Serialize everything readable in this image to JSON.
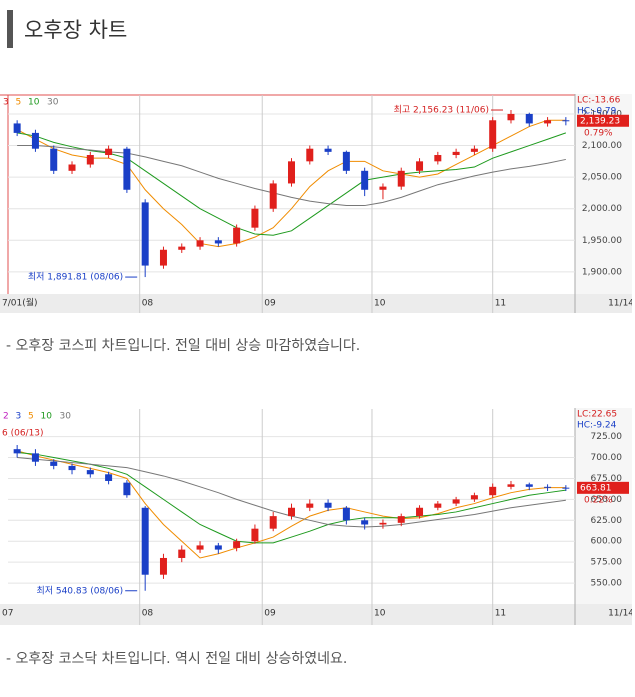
{
  "page": {
    "title": "오후장 차트",
    "captions": [
      "- 오후장 코스피 차트입니다. 전일 대비 상승 마감하였습니다.",
      "- 오후장 코스닥 차트입니다. 역시 전일 대비 상승하였네요."
    ]
  },
  "chart_data": [
    {
      "type": "candlestick",
      "legend_extra": [
        {
          "name": "3",
          "color": "#d42020"
        }
      ],
      "series": [
        {
          "name": "5",
          "color": "#f08c00",
          "values": [
            2125,
            2110,
            2095,
            2085,
            2080,
            2080,
            2070,
            2030,
            2000,
            1975,
            1945,
            1940,
            1945,
            1955,
            1970,
            2000,
            2035,
            2060,
            2075,
            2075,
            2060,
            2055,
            2050,
            2055,
            2070,
            2085,
            2100,
            2115,
            2130,
            2140,
            2140
          ]
        },
        {
          "name": "10",
          "color": "#1e9a1e",
          "values": [
            2120,
            2115,
            2105,
            2098,
            2092,
            2088,
            2080,
            2060,
            2040,
            2020,
            2000,
            1985,
            1970,
            1960,
            1958,
            1965,
            1985,
            2005,
            2025,
            2045,
            2050,
            2055,
            2058,
            2060,
            2062,
            2066,
            2080,
            2090,
            2100,
            2110,
            2120
          ]
        },
        {
          "name": "30",
          "color": "#777777",
          "values": [
            2100,
            2100,
            2098,
            2095,
            2093,
            2090,
            2088,
            2082,
            2075,
            2068,
            2058,
            2048,
            2040,
            2032,
            2025,
            2018,
            2012,
            2008,
            2005,
            2005,
            2010,
            2018,
            2028,
            2038,
            2045,
            2052,
            2058,
            2063,
            2067,
            2072,
            2078
          ]
        }
      ],
      "open": [
        2135,
        2120,
        2095,
        2060,
        2070,
        2085,
        2095,
        2010,
        1910,
        1935,
        1940,
        1950,
        1945,
        1970,
        2000,
        2040,
        2075,
        2095,
        2090,
        2060,
        2030,
        2035,
        2060,
        2075,
        2085,
        2090,
        2095,
        2140,
        2150,
        2135,
        2140
      ],
      "high": [
        2140,
        2125,
        2100,
        2075,
        2090,
        2100,
        2098,
        2015,
        1940,
        1945,
        1955,
        1955,
        1975,
        2005,
        2045,
        2080,
        2100,
        2100,
        2092,
        2065,
        2040,
        2065,
        2080,
        2090,
        2095,
        2100,
        2145,
        2156.23,
        2152,
        2145,
        2145
      ],
      "low": [
        2115,
        2090,
        2055,
        2055,
        2065,
        2080,
        2025,
        1891.81,
        1905,
        1930,
        1935,
        1940,
        1940,
        1965,
        1995,
        2035,
        2070,
        2085,
        2055,
        2020,
        2015,
        2030,
        2055,
        2070,
        2080,
        2085,
        2090,
        2135,
        2130,
        2130,
        2132
      ],
      "close": [
        2120,
        2095,
        2060,
        2070,
        2085,
        2095,
        2030,
        1910,
        1935,
        1940,
        1950,
        1945,
        1970,
        2000,
        2040,
        2075,
        2095,
        2090,
        2060,
        2030,
        2035,
        2060,
        2075,
        2085,
        2090,
        2095,
        2140,
        2150,
        2135,
        2140,
        2139.23
      ],
      "high_label": "최고 2,156.23 (11/06)",
      "low_label": "최저 1,891.81 (08/06)",
      "lc_label": "LC:-13.66",
      "hc_label": "HC:-0.79",
      "last_label": "2,139.23",
      "change_label": "0.79%",
      "xlim": [
        -0.5,
        30.5
      ],
      "xticks": [
        {
          "value": -0.5,
          "label": "7/01(월)"
        },
        {
          "value": 6.7,
          "label": "08"
        },
        {
          "value": 13.4,
          "label": "09"
        },
        {
          "value": 19.4,
          "label": "10"
        },
        {
          "value": 26.0,
          "label": "11"
        },
        {
          "value": 32.2,
          "label": "11/14"
        }
      ],
      "ylim": [
        1865,
        2180
      ],
      "yticks": [
        {
          "value": 1900,
          "label": "1,900.00"
        },
        {
          "value": 1950,
          "label": "1,950.00"
        },
        {
          "value": 2000,
          "label": "2,000.00"
        },
        {
          "value": 2050,
          "label": "2,050.00"
        },
        {
          "value": 2100,
          "label": "2,100.00"
        },
        {
          "value": 2150,
          "label": "2,150.00"
        }
      ],
      "up_color": "#e0201c",
      "down_color": "#1a3fc7",
      "grid": true
    },
    {
      "type": "candlestick",
      "legend_extra": [
        {
          "name": "2",
          "color": "#c020c0"
        },
        {
          "name": "3",
          "color": "#1a3fc7"
        }
      ],
      "series": [
        {
          "name": "5",
          "color": "#f08c00",
          "values": [
            708,
            702,
            697,
            692,
            687,
            682,
            675,
            645,
            620,
            600,
            580,
            585,
            592,
            598,
            605,
            618,
            630,
            637,
            640,
            635,
            630,
            627,
            628,
            633,
            640,
            645,
            652,
            658,
            662,
            664,
            664
          ]
        },
        {
          "name": "10",
          "color": "#1e9a1e",
          "values": [
            706,
            704,
            700,
            696,
            692,
            687,
            680,
            665,
            650,
            635,
            620,
            610,
            600,
            598,
            598,
            605,
            612,
            620,
            625,
            628,
            628,
            628,
            630,
            632,
            635,
            640,
            645,
            650,
            655,
            658,
            661
          ]
        },
        {
          "name": "30",
          "color": "#777777",
          "values": [
            700,
            698,
            696,
            694,
            692,
            690,
            688,
            683,
            678,
            672,
            665,
            658,
            650,
            643,
            636,
            630,
            625,
            620,
            618,
            617,
            618,
            620,
            623,
            626,
            629,
            632,
            636,
            640,
            643,
            646,
            649
          ]
        }
      ],
      "open": [
        710,
        705,
        695,
        690,
        685,
        680,
        670,
        640,
        560,
        580,
        590,
        595,
        592,
        600,
        615,
        630,
        640,
        646,
        640,
        625,
        620,
        622,
        630,
        640,
        645,
        650,
        655,
        665,
        668,
        665,
        664
      ],
      "high": [
        715,
        710,
        698,
        693,
        688,
        683,
        673,
        642,
        585,
        595,
        600,
        598,
        603,
        620,
        635,
        645,
        650,
        650,
        642,
        628,
        626,
        633,
        643,
        648,
        653,
        658,
        669,
        672,
        670,
        668,
        667
      ],
      "low": [
        700,
        690,
        686,
        680,
        676,
        668,
        652,
        540.83,
        555,
        575,
        586,
        585,
        588,
        597,
        612,
        626,
        636,
        636,
        620,
        614,
        615,
        618,
        627,
        637,
        642,
        647,
        652,
        662,
        661,
        660,
        660
      ],
      "close": [
        705,
        695,
        690,
        685,
        680,
        672,
        655,
        560,
        580,
        590,
        595,
        590,
        600,
        615,
        630,
        640,
        645,
        640,
        625,
        620,
        622,
        630,
        640,
        645,
        650,
        655,
        665,
        668,
        665,
        664,
        663.81
      ],
      "high_label": "6 (06/13)",
      "low_label": "최저 540.83 (08/06)",
      "lc_label": "LC:22.65",
      "hc_label": "HC:-9.24",
      "last_label": "663.81",
      "change_label": "0.22%",
      "xlim": [
        -0.5,
        30.5
      ],
      "xticks": [
        {
          "value": -0.5,
          "label": "07"
        },
        {
          "value": 6.7,
          "label": "08"
        },
        {
          "value": 13.4,
          "label": "09"
        },
        {
          "value": 19.4,
          "label": "10"
        },
        {
          "value": 26.0,
          "label": "11"
        },
        {
          "value": 32.2,
          "label": "11/14"
        }
      ],
      "ylim": [
        525,
        758
      ],
      "yticks": [
        {
          "value": 550,
          "label": "550.00"
        },
        {
          "value": 575,
          "label": "575.00"
        },
        {
          "value": 600,
          "label": "600.00"
        },
        {
          "value": 625,
          "label": "625.00"
        },
        {
          "value": 650,
          "label": "650.00"
        },
        {
          "value": 675,
          "label": "675.00"
        },
        {
          "value": 700,
          "label": "700.00"
        },
        {
          "value": 725,
          "label": "725.00"
        }
      ],
      "up_color": "#e0201c",
      "down_color": "#1a3fc7",
      "grid": true
    }
  ]
}
